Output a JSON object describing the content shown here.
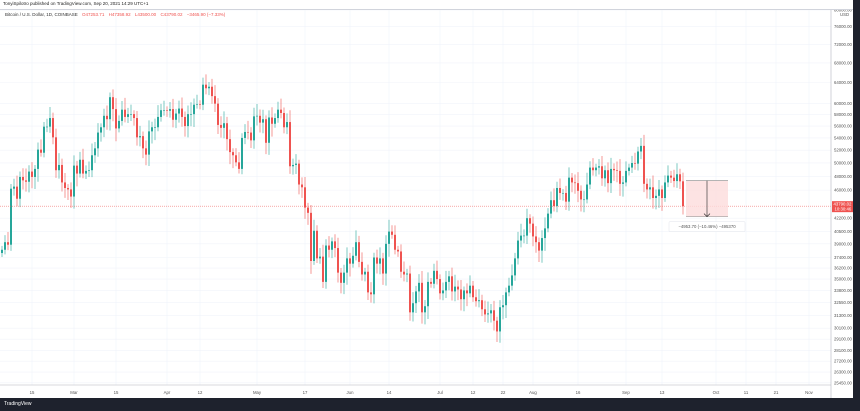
{
  "header": {
    "published": "TonyiSpilotro published on TradingView.com, Sep 20, 2021 14:29 UTC+1",
    "symbol": "Bitcoin / U.S. Dollar, 1D, COINBASE",
    "open": "O47253.71",
    "high": "H47358.92",
    "low": "L43500.00",
    "close": "C43790.02",
    "change": "−3465.90 (−7.33%)"
  },
  "footer": {
    "logo": "TradingView"
  },
  "colors": {
    "up": "#26a69a",
    "down": "#ef5350",
    "measure_fill": "#fcdcdc",
    "grid": "#f0f3fa"
  },
  "chart_data": {
    "type": "candlestick",
    "scale": "log",
    "currency_label": "USD",
    "start_date": "2021-02-05",
    "closes": [
      38300,
      39200,
      38900,
      46200,
      46500,
      44800,
      47900,
      47400,
      47200,
      48700,
      47900,
      49100,
      52100,
      51600,
      55900,
      55900,
      57400,
      54100,
      48900,
      49700,
      47100,
      46300,
      46100,
      45100,
      49600,
      48400,
      50500,
      48400,
      48800,
      48900,
      51200,
      52300,
      54900,
      55800,
      57800,
      57200,
      61200,
      59000,
      55600,
      56900,
      58900,
      57600,
      58100,
      58100,
      57400,
      54100,
      54300,
      52300,
      51300,
      55100,
      55800,
      55800,
      57600,
      58800,
      58800,
      58700,
      59000,
      57100,
      58200,
      59100,
      57600,
      56000,
      58100,
      58100,
      59800,
      59900,
      59800,
      63600,
      62900,
      63200,
      61400,
      60000,
      56200,
      55700,
      56500,
      53800,
      51700,
      51200,
      50100,
      49100,
      54000,
      55000,
      54900,
      53600,
      57700,
      57800,
      56600,
      57200,
      53200,
      57500,
      56400,
      57400,
      58900,
      58300,
      55800,
      56700,
      49500,
      49700,
      49900,
      46800,
      46400,
      43600,
      42900,
      37000,
      40600,
      37300,
      37500,
      34700,
      38800,
      38300,
      39300,
      38500,
      35700,
      34600,
      35700,
      37300,
      36700,
      37600,
      39200,
      36900,
      35500,
      35800,
      33600,
      33400,
      37400,
      36700,
      37300,
      35600,
      39000,
      40500,
      40100,
      38300,
      38100,
      35800,
      35500,
      35600,
      31600,
      32500,
      33700,
      34600,
      31600,
      32200,
      34700,
      34500,
      35900,
      35000,
      33500,
      33800,
      34700,
      35300,
      33700,
      34200,
      33900,
      32900,
      33800,
      33500,
      34300,
      33100,
      32700,
      32800,
      31900,
      31400,
      31500,
      31800,
      30800,
      29800,
      32100,
      32300,
      33600,
      34300,
      35400,
      37300,
      39400,
      40000,
      40000,
      42200,
      41500,
      39900,
      39200,
      38200,
      39700,
      40900,
      42800,
      44600,
      43800,
      46300,
      45600,
      45600,
      44400,
      47800,
      47100,
      47000,
      45900,
      44700,
      44700,
      46800,
      49300,
      48900,
      49300,
      49500,
      47700,
      48900,
      47000,
      49100,
      48900,
      48800,
      46900,
      47100,
      48800,
      49300,
      50000,
      49900,
      51800,
      52700,
      46900,
      46100,
      46400,
      44900,
      45200,
      46100,
      44900,
      47100,
      48100,
      47800,
      47300,
      48300,
      47260,
      43790.02
    ],
    "y_ticks": [
      "80000.00",
      "76000.00",
      "72000.00",
      "68000.00",
      "64000.00",
      "60000.00",
      "58000.00",
      "56000.00",
      "54000.00",
      "52000.00",
      "50000.00",
      "48000.00",
      "46000.00",
      "42200.00",
      "40500.00",
      "39000.00",
      "37400.00",
      "36200.00",
      "35000.00",
      "33800.00",
      "32550.00",
      "31300.00",
      "30100.00",
      "29100.00",
      "28100.00",
      "27200.00",
      "26300.00",
      "25450.00"
    ],
    "x_ticks": [
      {
        "label": "15",
        "date": "2021-02-15"
      },
      {
        "label": "Mar",
        "date": "2021-03-01"
      },
      {
        "label": "15",
        "date": "2021-03-15"
      },
      {
        "label": "Apr",
        "date": "2021-04-01"
      },
      {
        "label": "12",
        "date": "2021-04-12"
      },
      {
        "label": "May",
        "date": "2021-05-01"
      },
      {
        "label": "17",
        "date": "2021-05-17"
      },
      {
        "label": "Jun",
        "date": "2021-06-01"
      },
      {
        "label": "14",
        "date": "2021-06-14"
      },
      {
        "label": "Jul",
        "date": "2021-07-01"
      },
      {
        "label": "12",
        "date": "2021-07-12"
      },
      {
        "label": "22",
        "date": "2021-07-22"
      },
      {
        "label": "Aug",
        "date": "2021-08-01"
      },
      {
        "label": "16",
        "date": "2021-08-16"
      },
      {
        "label": "Sep",
        "date": "2021-09-01"
      },
      {
        "label": "13",
        "date": "2021-09-13"
      },
      {
        "label": "Oct",
        "date": "2021-10-01"
      },
      {
        "label": "11",
        "date": "2021-10-11"
      },
      {
        "label": "21",
        "date": "2021-10-21"
      },
      {
        "label": "Nov",
        "date": "2021-11-01"
      }
    ],
    "last_price": {
      "value": 43790.02,
      "label": "43790.02",
      "countdown": "10:30:46"
    },
    "measure": {
      "from": 47358.92,
      "to": 42405.22,
      "start_date": "2021-09-21",
      "end_date": "2021-10-05",
      "label": "−4953.70 (−10.46%) −495370"
    }
  }
}
